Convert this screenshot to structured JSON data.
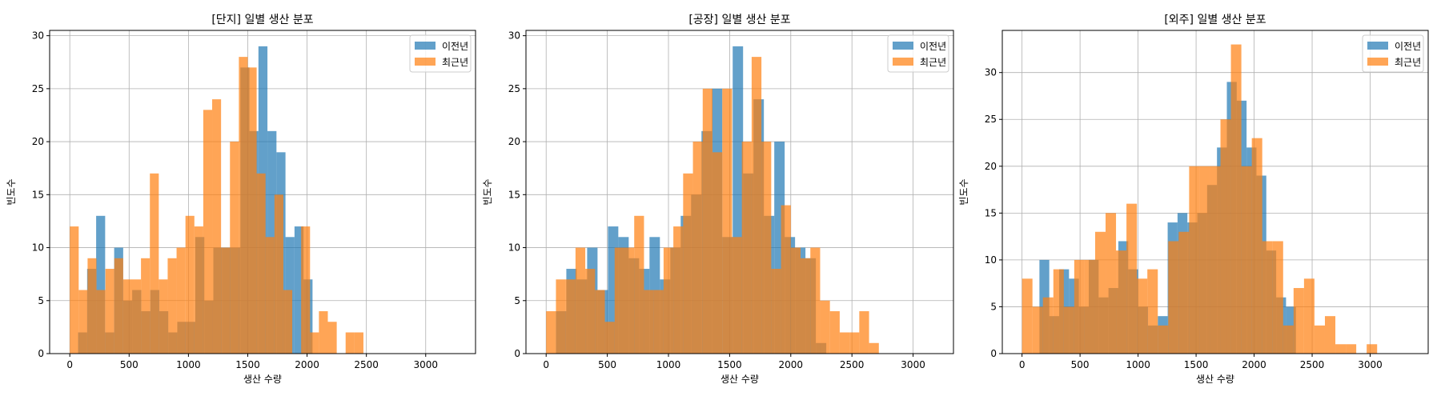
{
  "colors": {
    "series_a": "#1f77b4",
    "series_b": "#ff7f0e",
    "grid": "#b0b0b0",
    "frame": "#000000"
  },
  "chart_data": [
    {
      "type": "bar",
      "title": "[단지] 일별 생산 분포",
      "xlabel": "생산 수량",
      "ylabel": "빈도수",
      "grid": true,
      "legend_position": "top-right",
      "xlim": [
        -170,
        3420
      ],
      "ylim": [
        0,
        30.5
      ],
      "xticks": [
        0,
        500,
        1000,
        1500,
        2000,
        2500,
        3000
      ],
      "yticks": [
        0,
        5,
        10,
        15,
        20,
        25,
        30
      ],
      "series": [
        {
          "name": "이전년",
          "bins": {
            "start": 70,
            "width": 76
          },
          "values": [
            2,
            8,
            13,
            2,
            10,
            5,
            6,
            4,
            6,
            4,
            2,
            3,
            3,
            11,
            5,
            10,
            10,
            10,
            27,
            21,
            29,
            21,
            19,
            11,
            12,
            7
          ]
        },
        {
          "name": "최근년",
          "bins": {
            "start": 0,
            "width": 75
          },
          "values": [
            12,
            6,
            9,
            6,
            8,
            9,
            7,
            7,
            9,
            17,
            7,
            9,
            10,
            13,
            12,
            23,
            24,
            10,
            20,
            28,
            27,
            17,
            11,
            15,
            6,
            0,
            12,
            2,
            4,
            3,
            0,
            2,
            2
          ]
        }
      ]
    },
    {
      "type": "bar",
      "title": "[공장] 일별 생산 분포",
      "xlabel": "생산 수량",
      "ylabel": "빈도수",
      "grid": true,
      "legend_position": "top-right",
      "xlim": [
        -165,
        3330
      ],
      "ylim": [
        0,
        30.5
      ],
      "xticks": [
        0,
        500,
        1000,
        1500,
        2000,
        2500,
        3000
      ],
      "yticks": [
        0,
        5,
        10,
        15,
        20,
        25,
        30
      ],
      "series": [
        {
          "name": "이전년",
          "bins": {
            "start": 80,
            "width": 85
          },
          "values": [
            4,
            8,
            7,
            10,
            6,
            12,
            11,
            9,
            8,
            11,
            7,
            10,
            13,
            15,
            21,
            25,
            11,
            29,
            17,
            24,
            13,
            20,
            11,
            10,
            9,
            1
          ]
        },
        {
          "name": "최근년",
          "bins": {
            "start": 0,
            "width": 80
          },
          "values": [
            4,
            7,
            7,
            10,
            8,
            6,
            3,
            10,
            10,
            13,
            6,
            6,
            10,
            12,
            17,
            20,
            25,
            19,
            25,
            11,
            20,
            28,
            20,
            8,
            14,
            10,
            9,
            10,
            5,
            4,
            2,
            2,
            4,
            1
          ]
        }
      ]
    },
    {
      "type": "bar",
      "title": "[외주] 일별 생산 분포",
      "xlabel": "생산 수량",
      "ylabel": "빈도수",
      "grid": true,
      "legend_position": "top-right",
      "xlim": [
        -170,
        3500
      ],
      "ylim": [
        0,
        34.5
      ],
      "xticks": [
        0,
        500,
        1000,
        1500,
        2000,
        2500,
        3000
      ],
      "yticks": [
        0,
        5,
        10,
        15,
        20,
        25,
        30
      ],
      "series": [
        {
          "name": "이전년",
          "bins": {
            "start": 150,
            "width": 85
          },
          "values": [
            10,
            4,
            9,
            8,
            5,
            10,
            6,
            7,
            12,
            9,
            5,
            3,
            4,
            14,
            15,
            14,
            15,
            18,
            22,
            29,
            27,
            22,
            19,
            11,
            6,
            5
          ]
        },
        {
          "name": "최근년",
          "bins": {
            "start": 0,
            "width": 90
          },
          "values": [
            8,
            5,
            6,
            9,
            5,
            10,
            10,
            13,
            15,
            11,
            16,
            8,
            9,
            3,
            12,
            13,
            20,
            20,
            20,
            25,
            33,
            20,
            23,
            12,
            12,
            3,
            7,
            8,
            3,
            4,
            1,
            1,
            0,
            1
          ]
        }
      ]
    }
  ]
}
